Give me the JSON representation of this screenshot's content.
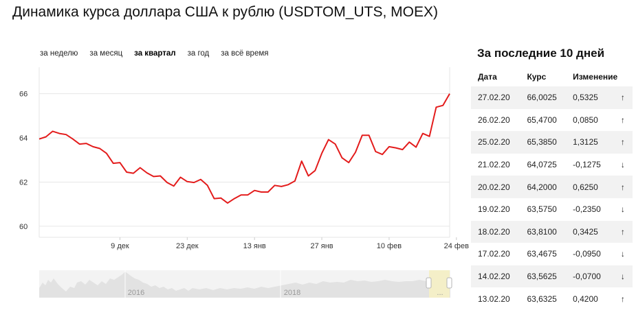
{
  "page": {
    "title": "Динамика курса доллара США к рублю (USDTOM_UTS, MOEX)"
  },
  "periods": [
    {
      "label": "за неделю",
      "active": false
    },
    {
      "label": "за месяц",
      "active": false
    },
    {
      "label": "за квартал",
      "active": true
    },
    {
      "label": "за год",
      "active": false
    },
    {
      "label": "за всё время",
      "active": false
    }
  ],
  "table": {
    "title": "За последние 10 дней",
    "headers": {
      "date": "Дата",
      "rate": "Курс",
      "change": "Изменение"
    },
    "rows": [
      {
        "date": "27.02.20",
        "rate": "66,0025",
        "change": "0,5325",
        "direction": "up"
      },
      {
        "date": "26.02.20",
        "rate": "65,4700",
        "change": "0,0850",
        "direction": "up"
      },
      {
        "date": "25.02.20",
        "rate": "65,3850",
        "change": "1,3125",
        "direction": "up"
      },
      {
        "date": "21.02.20",
        "rate": "64,0725",
        "change": "-0,1275",
        "direction": "down"
      },
      {
        "date": "20.02.20",
        "rate": "64,2000",
        "change": "0,6250",
        "direction": "up"
      },
      {
        "date": "19.02.20",
        "rate": "63,5750",
        "change": "-0,2350",
        "direction": "down"
      },
      {
        "date": "18.02.20",
        "rate": "63,8100",
        "change": "0,3425",
        "direction": "up"
      },
      {
        "date": "17.02.20",
        "rate": "63,4675",
        "change": "-0,0950",
        "direction": "down"
      },
      {
        "date": "14.02.20",
        "rate": "63,5625",
        "change": "-0,0700",
        "direction": "down"
      },
      {
        "date": "13.02.20",
        "rate": "63,6325",
        "change": "0,4200",
        "direction": "up"
      }
    ]
  },
  "colors": {
    "line": "#e31b1b",
    "up": "#3cc23c",
    "down": "#e31b1b",
    "grid": "#e6e6e6"
  },
  "chart_data": {
    "type": "line",
    "title": "",
    "xlabel": "",
    "ylabel": "",
    "ylim": [
      59.5,
      67.2
    ],
    "yticks": [
      60,
      62,
      64,
      66
    ],
    "xticks": [
      {
        "label": "9 дек",
        "x": 12
      },
      {
        "label": "23 дек",
        "x": 22
      },
      {
        "label": "13 янв",
        "x": 32
      },
      {
        "label": "27 янв",
        "x": 42
      },
      {
        "label": "10 фев",
        "x": 52
      },
      {
        "label": "24 фев",
        "x": 62
      }
    ],
    "grid": true,
    "series": [
      {
        "values": [
          63.95,
          64.05,
          64.3,
          64.2,
          64.15,
          63.95,
          63.72,
          63.75,
          63.6,
          63.52,
          63.3,
          62.85,
          62.88,
          62.45,
          62.4,
          62.65,
          62.42,
          62.25,
          62.28,
          61.98,
          61.82,
          62.22,
          62.02,
          61.98,
          62.12,
          61.85,
          61.25,
          61.28,
          61.05,
          61.25,
          61.42,
          61.42,
          61.62,
          61.55,
          61.55,
          61.85,
          61.8,
          61.88,
          62.05,
          62.95,
          62.28,
          62.52,
          63.3,
          63.92,
          63.72,
          63.1,
          62.88,
          63.35,
          64.12,
          64.12,
          63.38,
          63.25,
          63.6,
          63.55,
          63.47,
          63.81,
          63.58,
          64.2,
          64.07,
          65.39,
          65.47,
          66.0
        ]
      }
    ],
    "navigator": {
      "labels": [
        "2016",
        "2018"
      ]
    }
  }
}
